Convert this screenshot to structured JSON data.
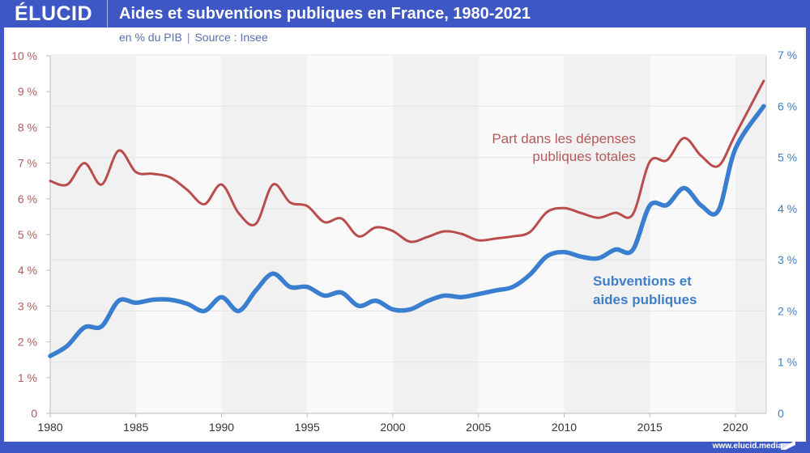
{
  "header": {
    "logo": "ÉLUCID",
    "title": "Aides et subventions publiques en France, 1980-2021"
  },
  "subtitle": {
    "unit": "en % du PIB",
    "separator": "|",
    "source": "Source : Insee"
  },
  "footer": {
    "url": "www.elucid.media"
  },
  "colors": {
    "frame": "#3d58c5",
    "red_series": "#b94d4d",
    "blue_series": "#3a7fcf",
    "band_dark": "#f1f1f1",
    "band_light": "#f9f9f9"
  },
  "chart_data": {
    "type": "line",
    "title": "Aides et subventions publiques en France, 1980-2021",
    "subtitle": "en % du PIB | Source : Insee",
    "xlabel": "",
    "x": [
      1980,
      1981,
      1982,
      1983,
      1984,
      1985,
      1986,
      1987,
      1988,
      1989,
      1990,
      1991,
      1992,
      1993,
      1994,
      1995,
      1996,
      1997,
      1998,
      1999,
      2000,
      2001,
      2002,
      2003,
      2004,
      2005,
      2006,
      2007,
      2008,
      2009,
      2010,
      2011,
      2012,
      2013,
      2014,
      2015,
      2016,
      2017,
      2018,
      2019,
      2020,
      2021
    ],
    "xlim": [
      1980,
      2021.7
    ],
    "x_ticks": [
      1980,
      1985,
      1990,
      1995,
      2000,
      2005,
      2010,
      2015,
      2020
    ],
    "x_tick_labels": [
      "1980",
      "1985",
      "1990",
      "1995",
      "2000",
      "2005",
      "2010",
      "2015",
      "2020"
    ],
    "y_left": {
      "label": "Part dans les dépenses publiques totales",
      "ylim": [
        0,
        10
      ],
      "ticks": [
        0,
        1,
        2,
        3,
        4,
        5,
        6,
        7,
        8,
        9,
        10
      ],
      "tick_labels": [
        "0",
        "1 %",
        "2 %",
        "3 %",
        "4 %",
        "5 %",
        "6 %",
        "7 %",
        "8 %",
        "9 %",
        "10 %"
      ]
    },
    "y_right": {
      "label": "Subventions et aides publiques",
      "ylim": [
        0,
        7
      ],
      "ticks": [
        0,
        1,
        2,
        3,
        4,
        5,
        6,
        7
      ],
      "tick_labels": [
        "0",
        "1 %",
        "2 %",
        "3 %",
        "4 %",
        "5 %",
        "6 %",
        "7 %"
      ]
    },
    "grid": "horizontal lines on right-axis ticks; alternating 5-year vertical bands",
    "series": [
      {
        "name": "Part dans les dépenses publiques totales",
        "axis": "left",
        "color": "#b94d4d",
        "annotation": [
          "Part dans les dépenses",
          "publiques totales"
        ],
        "values": [
          6.5,
          6.4,
          7.0,
          6.4,
          7.35,
          6.75,
          6.7,
          6.6,
          6.25,
          5.85,
          6.4,
          5.6,
          5.3,
          6.4,
          5.9,
          5.8,
          5.35,
          5.45,
          4.95,
          5.2,
          5.1,
          4.8,
          4.93,
          5.09,
          5.02,
          4.84,
          4.89,
          4.95,
          5.07,
          5.63,
          5.74,
          5.6,
          5.47,
          5.61,
          5.56,
          7.04,
          7.08,
          7.7,
          7.2,
          6.92,
          7.8,
          9.3
        ]
      },
      {
        "name": "Subventions et aides publiques",
        "axis": "right",
        "color": "#3a7fcf",
        "annotation": [
          "Subventions et",
          "aides publiques"
        ],
        "values": [
          1.12,
          1.32,
          1.68,
          1.7,
          2.2,
          2.16,
          2.22,
          2.22,
          2.14,
          2.0,
          2.27,
          2.0,
          2.4,
          2.73,
          2.47,
          2.47,
          2.3,
          2.36,
          2.1,
          2.2,
          2.03,
          2.03,
          2.19,
          2.3,
          2.27,
          2.33,
          2.4,
          2.47,
          2.71,
          3.07,
          3.15,
          3.06,
          3.03,
          3.2,
          3.19,
          4.06,
          4.07,
          4.4,
          4.06,
          3.96,
          5.17,
          6.0
        ]
      }
    ]
  }
}
